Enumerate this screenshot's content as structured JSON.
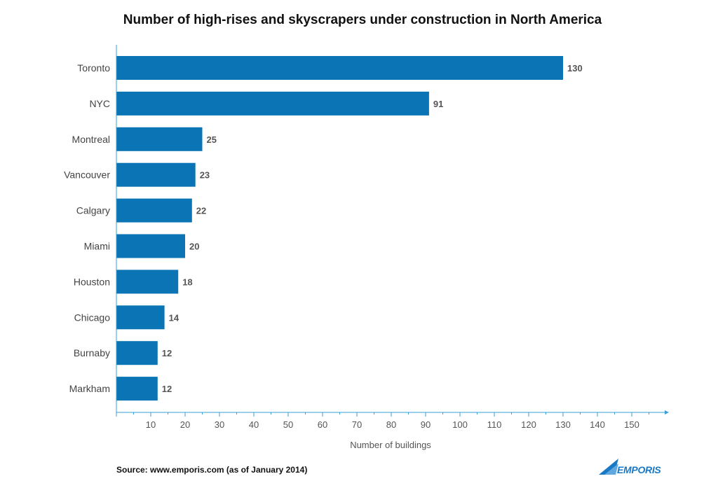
{
  "chart_data": {
    "type": "bar",
    "orientation": "horizontal",
    "title": "Number of high-rises and skyscrapers under construction in North America",
    "xlabel": "Number of buildings",
    "ylabel": "",
    "categories": [
      "Toronto",
      "NYC",
      "Montreal",
      "Vancouver",
      "Calgary",
      "Miami",
      "Houston",
      "Chicago",
      "Burnaby",
      "Markham"
    ],
    "values": [
      130,
      91,
      25,
      23,
      22,
      20,
      18,
      14,
      12,
      12
    ],
    "data_labels": [
      "130",
      "91",
      "25",
      "23",
      "22",
      "20",
      "18",
      "14",
      "12",
      "12"
    ],
    "x_ticks": [
      "10",
      "20",
      "30",
      "40",
      "50",
      "60",
      "70",
      "80",
      "90",
      "100",
      "110",
      "120",
      "130",
      "140",
      "150"
    ],
    "xlim": [
      0,
      160
    ],
    "grid": false,
    "legend": "none",
    "bar_color": "#0a74b4",
    "axis_color": "#3a9fd6"
  },
  "source": "Source: www.emporis.com (as of January 2014)",
  "logo": {
    "text": "EMPORIS",
    "color": "#1979c4",
    "icon": "emporis-wing-logo"
  }
}
